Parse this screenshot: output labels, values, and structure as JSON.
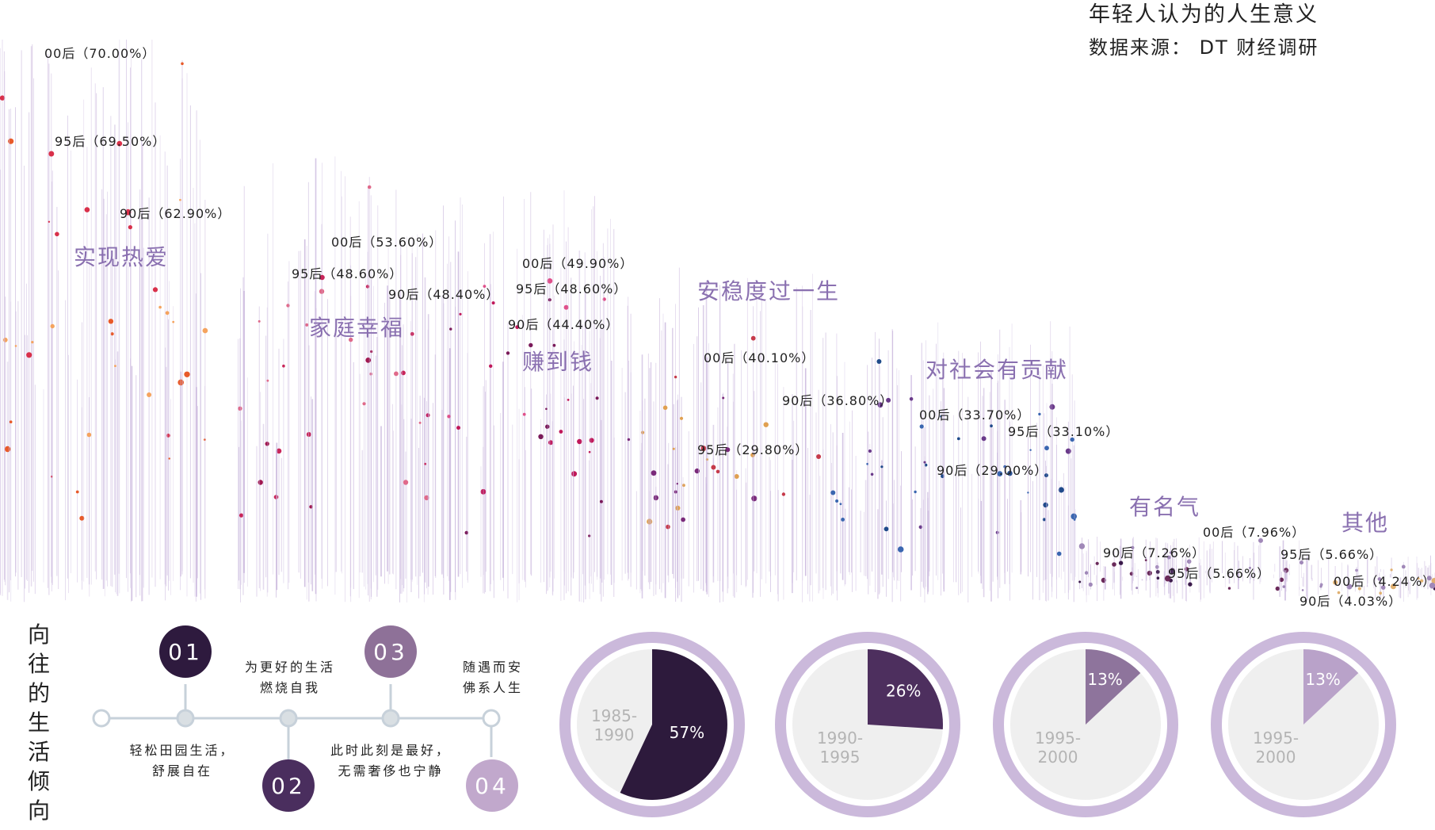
{
  "header": {
    "title": "年轻人认为的人生意义",
    "source": "数据来源： DT 财经调研"
  },
  "chart_data": {
    "type": "stem",
    "title": "年轻人认为的人生意义",
    "categories": [
      "实现热爱",
      "家庭幸福",
      "赚到钱",
      "安稳度过一生",
      "对社会有贡献",
      "有名气",
      "其他"
    ],
    "series": [
      {
        "name": "00后",
        "values": [
          70.0,
          53.6,
          49.9,
          40.1,
          33.7,
          7.96,
          4.24
        ]
      },
      {
        "name": "95后",
        "values": [
          69.5,
          48.6,
          48.6,
          29.8,
          33.1,
          5.66,
          5.66
        ]
      },
      {
        "name": "90后",
        "values": [
          62.9,
          48.4,
          44.4,
          36.8,
          29.0,
          7.26,
          4.03
        ]
      }
    ],
    "labels": [
      {
        "text": "00后（70.00%）"
      },
      {
        "text": "95后（69.50%）"
      },
      {
        "text": "90后（62.90%）"
      },
      {
        "text": "00后（53.60%）"
      },
      {
        "text": "95后（48.60%）"
      },
      {
        "text": "90后（48.40%）"
      },
      {
        "text": "00后（49.90%）"
      },
      {
        "text": "95后（48.60%）"
      },
      {
        "text": "90后（44.40%）"
      },
      {
        "text": "00后（40.10%）"
      },
      {
        "text": "90后（36.80%）"
      },
      {
        "text": "95后（29.80%）"
      },
      {
        "text": "00后（33.70%）"
      },
      {
        "text": "95后（33.10%）"
      },
      {
        "text": "90后（29.00%）"
      },
      {
        "text": "00后（7.96%）"
      },
      {
        "text": "90后（7.26%）"
      },
      {
        "text": "95后（5.66%）"
      },
      {
        "text": "95后（5.66%）"
      },
      {
        "text": "00后（4.24%）"
      },
      {
        "text": "90后（4.03%）"
      }
    ],
    "colors": {
      "实现热爱": [
        "#e85a2a",
        "#f5a35e",
        "#d9304a"
      ],
      "家庭幸福": [
        "#c8265a",
        "#e06a8a",
        "#a01850"
      ],
      "赚到钱": [
        "#c0185a",
        "#7a1a5a",
        "#e0508a"
      ],
      "安稳度过一生": [
        "#c63a4a",
        "#e0a050",
        "#7a2a7a"
      ],
      "对社会有贡献": [
        "#1f4a8a",
        "#3a66b0",
        "#6a3a8a"
      ],
      "有名气": [
        "#3a1a4a",
        "#6a2a5a",
        "#a088b8"
      ],
      "其他": [
        "#3a1a4a",
        "#e0b070",
        "#a088b8"
      ]
    },
    "stem_color": "#c9b6dd"
  },
  "vertical_title": "向往的生活倾向",
  "timeline": {
    "items": [
      {
        "num": "01",
        "text": "轻松田园生活，舒展自在"
      },
      {
        "num": "02",
        "text": "为更好的生活燃烧自我"
      },
      {
        "num": "03",
        "text": "此时此刻是最好，无需奢侈也宁静"
      },
      {
        "num": "04",
        "text": "随遇而安佛系人生"
      }
    ],
    "top_texts": [
      "为更好的生活",
      "燃烧自我",
      "随遇而安",
      "佛系人生"
    ],
    "bottom_texts": [
      "轻松田园生活，",
      "舒展自在",
      "此时此刻是最好，",
      "无需奢侈也宁静"
    ],
    "colors": {
      "c01": "#2e1a3e",
      "c02": "#4a2e5e",
      "c03": "#8e7198",
      "c04": "#c1a8cc",
      "line": "#c7d1da",
      "node": "#d9dfe3"
    }
  },
  "pies": [
    {
      "label": "1985-1990",
      "value": 57,
      "value_text": "57%",
      "color": "#2d1a3c"
    },
    {
      "label": "1990-1995",
      "value": 26,
      "value_text": "26%",
      "color": "#4d2f5e"
    },
    {
      "label": "1995-2000",
      "value": 13,
      "value_text": "13%",
      "color": "#8e749c"
    },
    {
      "label": "1995-2000",
      "value": 13,
      "value_text": "13%",
      "color": "#b9a2c9"
    }
  ],
  "pie_style": {
    "ring": "#cbb9db",
    "base": "#efefef",
    "label_color": "#b4b4b4"
  }
}
